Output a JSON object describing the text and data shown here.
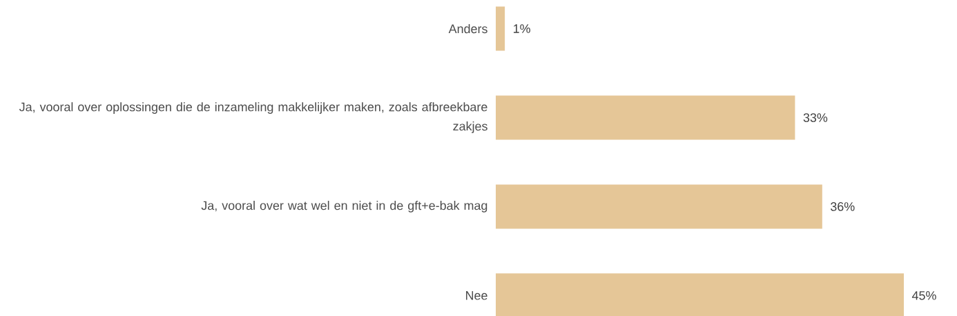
{
  "chart_data": {
    "type": "bar",
    "orientation": "horizontal",
    "categories": [
      "Anders",
      "Ja, vooral over oplossingen die de inzameling makkelijker maken, zoals afbreekbare zakjes",
      "Ja, vooral over wat wel en niet in de gft+e-bak mag",
      "Nee"
    ],
    "values": [
      1,
      33,
      36,
      45
    ],
    "value_labels": [
      "1%",
      "33%",
      "36%",
      "45%"
    ],
    "color": "#e5c697"
  }
}
